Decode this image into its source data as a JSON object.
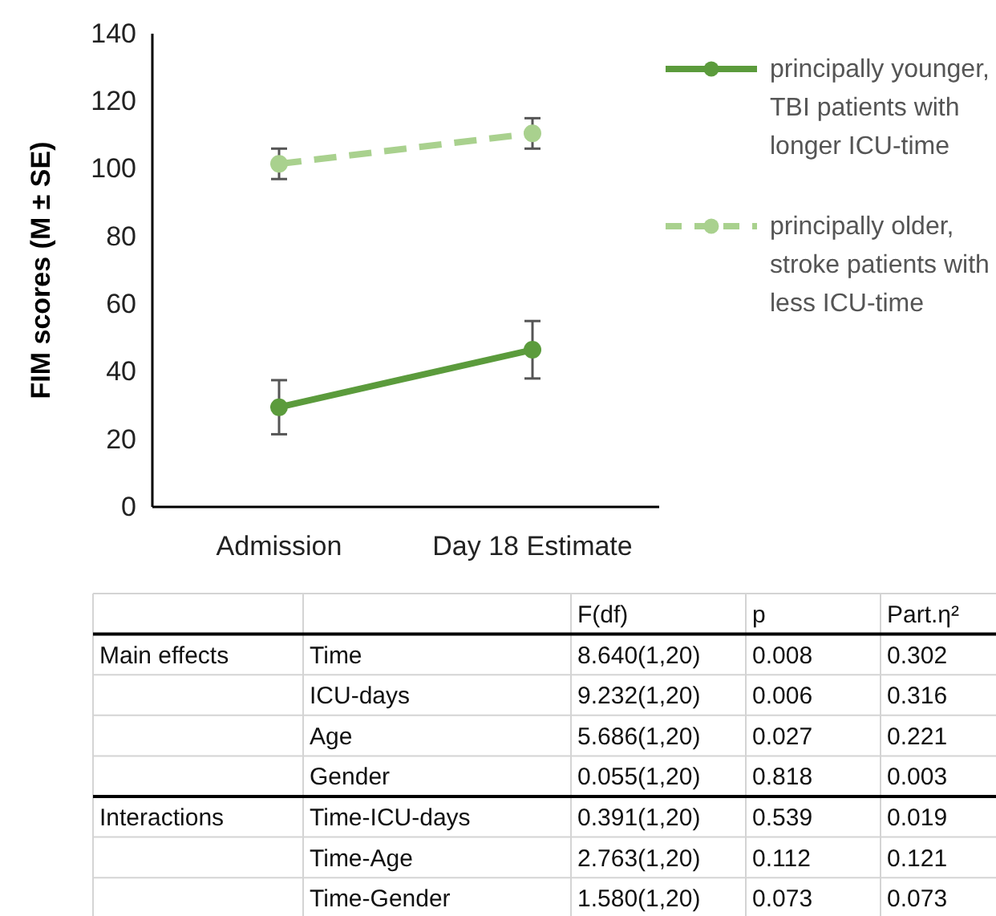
{
  "chart_data": {
    "type": "line",
    "ylabel": "FIM scores (M ± SE)",
    "categories": [
      "Admission",
      "Day 18 Estimate"
    ],
    "series": [
      {
        "name": "principally younger, TBI patients with longer ICU-time",
        "color": "#5b9b3c",
        "values": [
          29.5,
          46.5
        ],
        "errors": [
          8,
          8.5
        ],
        "line_style": "solid",
        "marker": "circle"
      },
      {
        "name": "principally older, stroke patients with less ICU-time",
        "color": "#a9d18e",
        "values": [
          101.5,
          110.5
        ],
        "errors": [
          4.5,
          4.5
        ],
        "line_style": "dashed",
        "marker": "circle"
      }
    ],
    "ylim": [
      0,
      140
    ],
    "yticks": [
      0,
      20,
      40,
      60,
      80,
      100,
      120,
      140
    ],
    "grid": false,
    "legend": "right",
    "annotations": [
      "F(df)",
      "p",
      "Part.η²",
      "Main effects",
      "Time",
      "8.640(1,20)",
      "0.008",
      "0.302",
      "ICU-days",
      "9.232(1,20)",
      "0.006",
      "0.316",
      "Age",
      "5.686(1,20)",
      "0.027",
      "0.221",
      "Gender",
      "0.055(1,20)",
      "0.818",
      "0.003",
      "Interactions",
      "Time-ICU-days",
      "0.391(1,20)",
      "0.539",
      "0.019",
      "Time-Age",
      "2.763(1,20)",
      "0.112",
      "0.121",
      "Time-Gender",
      "1.580(1,20)",
      "0.073",
      "0.073"
    ]
  }
}
